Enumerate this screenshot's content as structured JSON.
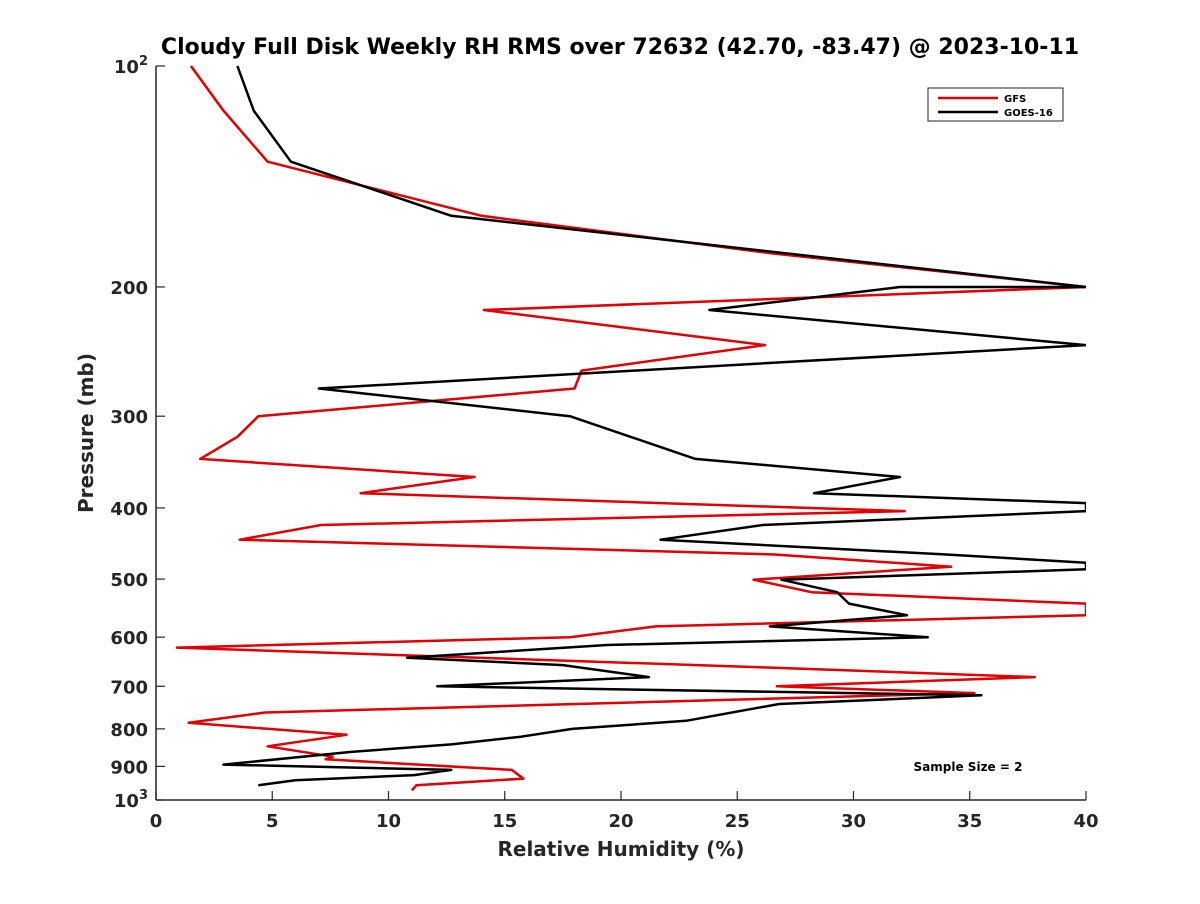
{
  "chart_data": {
    "type": "line",
    "title": "Cloudy Full Disk Weekly RH RMS over 72632 (42.70, -83.47) @ 2023-10-11",
    "xlabel": "Relative Humidity (%)",
    "ylabel": "Pressure (mb)",
    "xlim": [
      0,
      40
    ],
    "ylim": [
      100,
      1000
    ],
    "y_scale": "log",
    "y_reversed": true,
    "x_ticks": [
      "0",
      "5",
      "10",
      "15",
      "20",
      "25",
      "30",
      "35",
      "40"
    ],
    "y_ticks": [
      {
        "value": 100,
        "base": "10",
        "exp": "2"
      },
      {
        "value": 200,
        "label": "200"
      },
      {
        "value": 300,
        "label": "300"
      },
      {
        "value": 400,
        "label": "400"
      },
      {
        "value": 500,
        "label": "500"
      },
      {
        "value": 600,
        "label": "600"
      },
      {
        "value": 700,
        "label": "700"
      },
      {
        "value": 800,
        "label": "800"
      },
      {
        "value": 900,
        "label": "900"
      },
      {
        "value": 1000,
        "base": "10",
        "exp": "3"
      }
    ],
    "legend_position": "top-right",
    "annotation": "Sample Size = 2",
    "series": [
      {
        "name": "GFS",
        "color": "#e00000",
        "points": [
          [
            1.5,
            100
          ],
          [
            2.9,
            115
          ],
          [
            4.8,
            135
          ],
          [
            14.0,
            160
          ],
          [
            26.5,
            180
          ],
          [
            40.0,
            200
          ],
          [
            14.1,
            215
          ],
          [
            26.2,
            240
          ],
          [
            18.3,
            260
          ],
          [
            18.0,
            275
          ],
          [
            4.4,
            300
          ],
          [
            3.5,
            320
          ],
          [
            1.9,
            343
          ],
          [
            13.7,
            363
          ],
          [
            8.8,
            382
          ],
          [
            32.2,
            404
          ],
          [
            7.1,
            422
          ],
          [
            3.6,
            442
          ],
          [
            26.6,
            463
          ],
          [
            34.2,
            481
          ],
          [
            25.7,
            501
          ],
          [
            28.2,
            521
          ],
          [
            40.0,
            540
          ],
          [
            40.0,
            560
          ],
          [
            21.5,
            580
          ],
          [
            17.8,
            600
          ],
          [
            0.9,
            620
          ],
          [
            26.3,
            660
          ],
          [
            37.8,
            680
          ],
          [
            26.7,
            700
          ],
          [
            35.2,
            715
          ],
          [
            4.7,
            760
          ],
          [
            1.4,
            785
          ],
          [
            8.2,
            815
          ],
          [
            4.8,
            845
          ],
          [
            7.6,
            873
          ],
          [
            7.3,
            880
          ],
          [
            15.3,
            910
          ],
          [
            15.8,
            935
          ],
          [
            11.2,
            955
          ],
          [
            11.0,
            970
          ]
        ]
      },
      {
        "name": "GOES-16",
        "color": "#000000",
        "points": [
          [
            3.5,
            100
          ],
          [
            4.2,
            115
          ],
          [
            5.8,
            135
          ],
          [
            12.7,
            160
          ],
          [
            40.0,
            200
          ],
          [
            32.0,
            200
          ],
          [
            23.8,
            215
          ],
          [
            40.0,
            240
          ],
          [
            7.0,
            275
          ],
          [
            17.8,
            300
          ],
          [
            23.2,
            343
          ],
          [
            32.0,
            363
          ],
          [
            28.3,
            382
          ],
          [
            40.0,
            394
          ],
          [
            40.0,
            404
          ],
          [
            26.1,
            422
          ],
          [
            21.7,
            442
          ],
          [
            34.0,
            463
          ],
          [
            40.0,
            475
          ],
          [
            40.0,
            485
          ],
          [
            26.9,
            501
          ],
          [
            29.3,
            521
          ],
          [
            29.8,
            540
          ],
          [
            32.3,
            560
          ],
          [
            26.4,
            580
          ],
          [
            33.2,
            600
          ],
          [
            19.4,
            615
          ],
          [
            10.8,
            640
          ],
          [
            17.5,
            655
          ],
          [
            21.2,
            680
          ],
          [
            12.1,
            700
          ],
          [
            35.5,
            720
          ],
          [
            26.8,
            740
          ],
          [
            22.8,
            780
          ],
          [
            17.9,
            800
          ],
          [
            15.7,
            820
          ],
          [
            12.7,
            840
          ],
          [
            8.4,
            860
          ],
          [
            2.9,
            895
          ],
          [
            12.7,
            910
          ],
          [
            11.1,
            925
          ],
          [
            6.0,
            940
          ],
          [
            4.4,
            955
          ]
        ]
      }
    ]
  }
}
